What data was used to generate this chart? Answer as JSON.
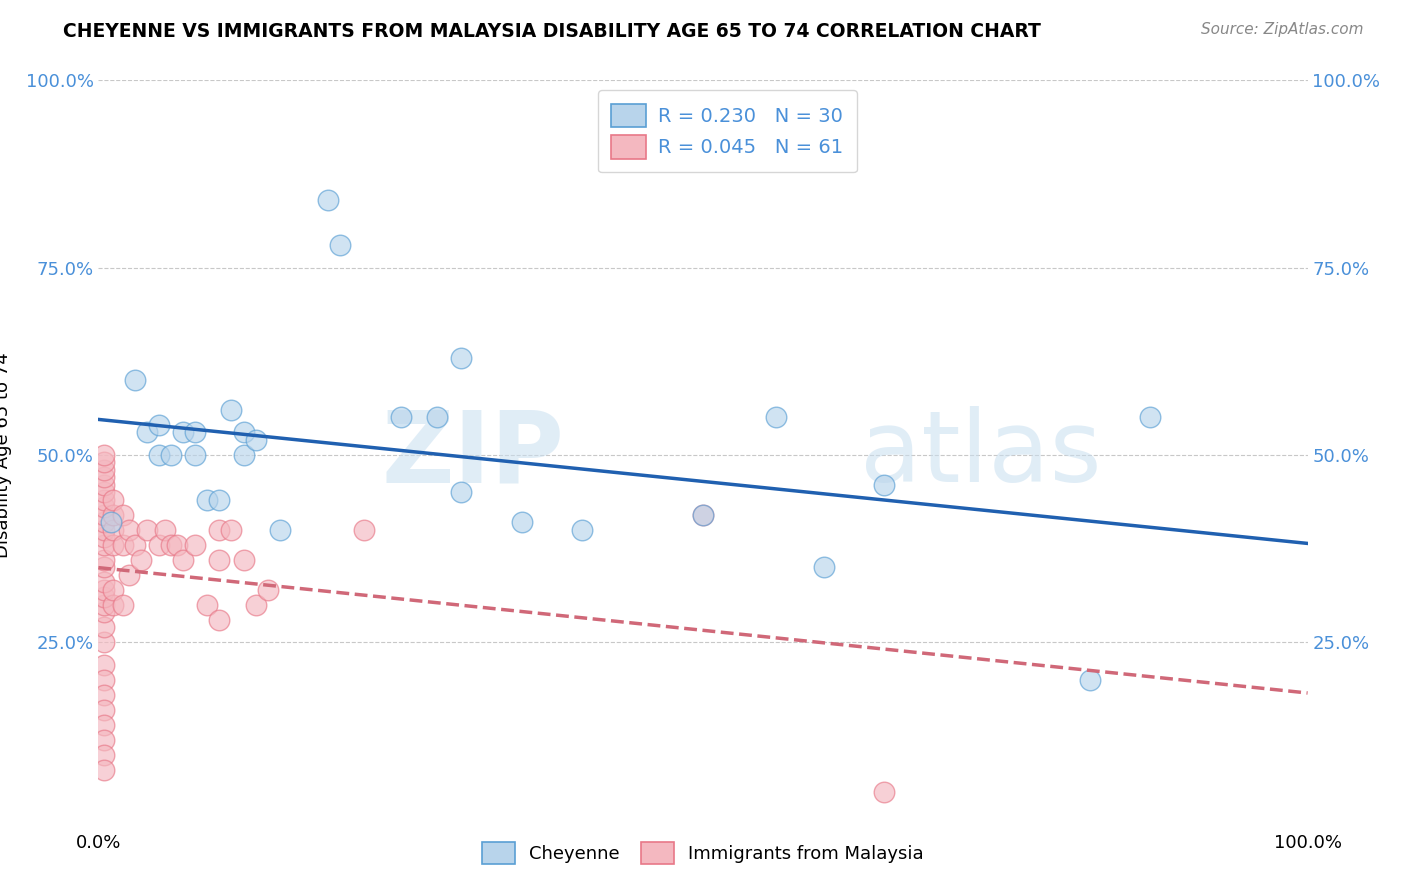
{
  "title": "CHEYENNE VS IMMIGRANTS FROM MALAYSIA DISABILITY AGE 65 TO 74 CORRELATION CHART",
  "source": "Source: ZipAtlas.com",
  "ylabel": "Disability Age 65 to 74",
  "legend_label1": "Cheyenne",
  "legend_label2": "Immigrants from Malaysia",
  "R1": 0.23,
  "N1": 30,
  "R2": 0.045,
  "N2": 61,
  "color_blue": "#b8d4eb",
  "color_pink": "#f4b8c0",
  "color_blue_edge": "#5a9fd4",
  "color_pink_edge": "#e87888",
  "color_blue_text": "#4a90d9",
  "line_blue": "#2060b0",
  "line_pink": "#d06878",
  "background": "#ffffff",
  "grid_color": "#c8c8c8",
  "xlim": [
    0.0,
    1.0
  ],
  "ylim": [
    0.0,
    1.0
  ],
  "cheyenne_x": [
    0.01,
    0.03,
    0.04,
    0.05,
    0.05,
    0.06,
    0.07,
    0.08,
    0.08,
    0.09,
    0.1,
    0.11,
    0.12,
    0.12,
    0.13,
    0.15,
    0.19,
    0.2,
    0.25,
    0.28,
    0.3,
    0.3,
    0.35,
    0.4,
    0.5,
    0.56,
    0.6,
    0.65,
    0.82,
    0.87
  ],
  "cheyenne_y": [
    0.41,
    0.6,
    0.53,
    0.5,
    0.54,
    0.5,
    0.53,
    0.5,
    0.53,
    0.44,
    0.44,
    0.56,
    0.5,
    0.53,
    0.52,
    0.4,
    0.84,
    0.78,
    0.55,
    0.55,
    0.63,
    0.45,
    0.41,
    0.4,
    0.42,
    0.55,
    0.35,
    0.46,
    0.2,
    0.55
  ],
  "malaysia_x": [
    0.005,
    0.005,
    0.005,
    0.005,
    0.005,
    0.005,
    0.005,
    0.005,
    0.005,
    0.005,
    0.005,
    0.005,
    0.005,
    0.005,
    0.005,
    0.005,
    0.005,
    0.005,
    0.005,
    0.005,
    0.005,
    0.005,
    0.005,
    0.005,
    0.005,
    0.005,
    0.005,
    0.005,
    0.005,
    0.005,
    0.012,
    0.012,
    0.012,
    0.012,
    0.012,
    0.012,
    0.02,
    0.02,
    0.02,
    0.025,
    0.025,
    0.03,
    0.035,
    0.04,
    0.05,
    0.055,
    0.06,
    0.065,
    0.07,
    0.08,
    0.09,
    0.1,
    0.1,
    0.1,
    0.11,
    0.12,
    0.13,
    0.14,
    0.22,
    0.5,
    0.65
  ],
  "malaysia_y": [
    0.25,
    0.27,
    0.29,
    0.3,
    0.31,
    0.32,
    0.33,
    0.35,
    0.36,
    0.38,
    0.39,
    0.4,
    0.41,
    0.42,
    0.43,
    0.44,
    0.45,
    0.46,
    0.47,
    0.48,
    0.49,
    0.5,
    0.22,
    0.2,
    0.18,
    0.16,
    0.14,
    0.12,
    0.1,
    0.08,
    0.38,
    0.4,
    0.42,
    0.44,
    0.3,
    0.32,
    0.38,
    0.42,
    0.3,
    0.4,
    0.34,
    0.38,
    0.36,
    0.4,
    0.38,
    0.4,
    0.38,
    0.38,
    0.36,
    0.38,
    0.3,
    0.4,
    0.36,
    0.28,
    0.4,
    0.36,
    0.3,
    0.32,
    0.4,
    0.42,
    0.05
  ],
  "watermark_zip": "ZIP",
  "watermark_atlas": "atlas",
  "figsize": [
    14.06,
    8.92
  ],
  "dpi": 100
}
